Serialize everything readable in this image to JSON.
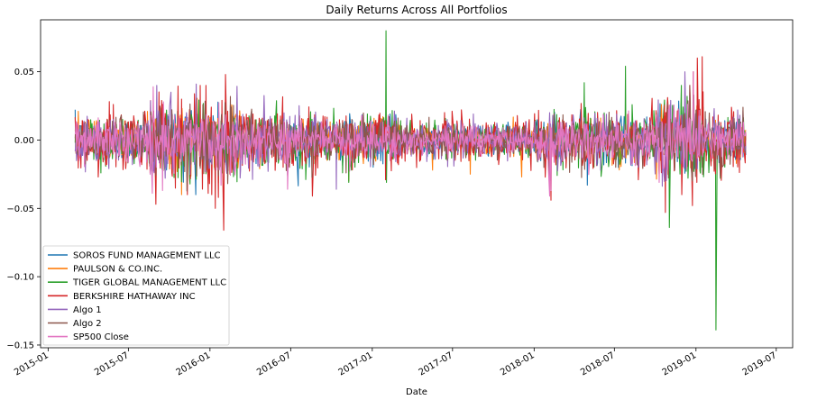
{
  "chart_data": {
    "type": "line",
    "title": "Daily Returns Across All Portfolios",
    "xlabel": "Date",
    "ylabel": "",
    "x_range": [
      "2015-03-03",
      "2019-04-23"
    ],
    "ylim": [
      -0.15,
      0.09
    ],
    "x_ticks": [
      "2015-01",
      "2015-07",
      "2016-01",
      "2016-07",
      "2017-01",
      "2017-07",
      "2018-01",
      "2018-07",
      "2019-01",
      "2019-07"
    ],
    "y_ticks": [
      -0.15,
      -0.1,
      -0.05,
      0.0,
      0.05
    ],
    "y_tick_labels": [
      "−0.15",
      "−0.10",
      "−0.05",
      "0.00",
      "0.05"
    ],
    "legend": {
      "location": "lower-left"
    },
    "grid": false,
    "series": [
      {
        "name": "SOROS FUND MANAGEMENT LLC",
        "color": "#1f77b4",
        "amplitude": 0.008,
        "spikes": [
          [
            "2015-08-24",
            -0.028
          ],
          [
            "2016-02-11",
            -0.02
          ],
          [
            "2016-06-24",
            -0.025
          ],
          [
            "2018-02-05",
            -0.03
          ],
          [
            "2018-05-01",
            -0.033
          ],
          [
            "2018-12-24",
            -0.025
          ],
          [
            "2018-12-26",
            0.02
          ]
        ]
      },
      {
        "name": "PAULSON & CO.INC.",
        "color": "#ff7f0e",
        "amplitude": 0.007,
        "spikes": [
          [
            "2016-11-09",
            -0.03
          ],
          [
            "2017-05-17",
            -0.022
          ],
          [
            "2017-08-10",
            -0.025
          ],
          [
            "2017-12-04",
            -0.027
          ],
          [
            "2018-10-10",
            -0.025
          ]
        ]
      },
      {
        "name": "TIGER GLOBAL MANAGEMENT LLC",
        "color": "#2ca02c",
        "amplitude": 0.009,
        "spikes": [
          [
            "2017-02-01",
            0.08
          ],
          [
            "2017-02-02",
            -0.031
          ],
          [
            "2016-05-02",
            0.025
          ],
          [
            "2018-04-24",
            0.042
          ],
          [
            "2018-07-26",
            0.054
          ],
          [
            "2018-11-02",
            -0.064
          ],
          [
            "2019-02-15",
            -0.139
          ],
          [
            "2019-02-25",
            -0.028
          ],
          [
            "2016-11-09",
            -0.031
          ]
        ]
      },
      {
        "name": "BERKSHIRE HATHAWAY INC",
        "color": "#d62728",
        "amplitude": 0.011,
        "spikes": [
          [
            "2015-09-01",
            -0.047
          ],
          [
            "2016-01-13",
            -0.05
          ],
          [
            "2016-02-01",
            -0.066
          ],
          [
            "2016-02-05",
            0.048
          ],
          [
            "2016-01-20",
            -0.042
          ],
          [
            "2018-10-24",
            -0.053
          ],
          [
            "2019-01-04",
            0.06
          ],
          [
            "2019-01-15",
            0.061
          ],
          [
            "2018-12-24",
            -0.048
          ],
          [
            "2018-12-26",
            0.05
          ],
          [
            "2018-02-08",
            -0.044
          ],
          [
            "2016-08-20",
            -0.041
          ]
        ]
      },
      {
        "name": "Algo 1",
        "color": "#9467bd",
        "amplitude": 0.009,
        "spikes": [
          [
            "2015-09-03",
            0.04
          ],
          [
            "2015-12-01",
            0.041
          ],
          [
            "2016-10-12",
            -0.036
          ],
          [
            "2018-12-07",
            0.05
          ],
          [
            "2018-11-05",
            0.029
          ]
        ]
      },
      {
        "name": "Algo 2",
        "color": "#8c564b",
        "amplitude": 0.008,
        "spikes": [
          [
            "2016-06-24",
            -0.026
          ],
          [
            "2018-02-05",
            -0.03
          ],
          [
            "2018-12-24",
            -0.03
          ]
        ]
      },
      {
        "name": "SP500 Close",
        "color": "#e377c2",
        "amplitude": 0.007,
        "spikes": [
          [
            "2015-08-24",
            -0.039
          ],
          [
            "2015-08-26",
            0.039
          ],
          [
            "2016-06-24",
            -0.036
          ],
          [
            "2018-02-05",
            -0.041
          ],
          [
            "2018-02-08",
            -0.037
          ],
          [
            "2018-12-26",
            0.05
          ],
          [
            "2018-10-10",
            -0.031
          ]
        ]
      }
    ]
  }
}
